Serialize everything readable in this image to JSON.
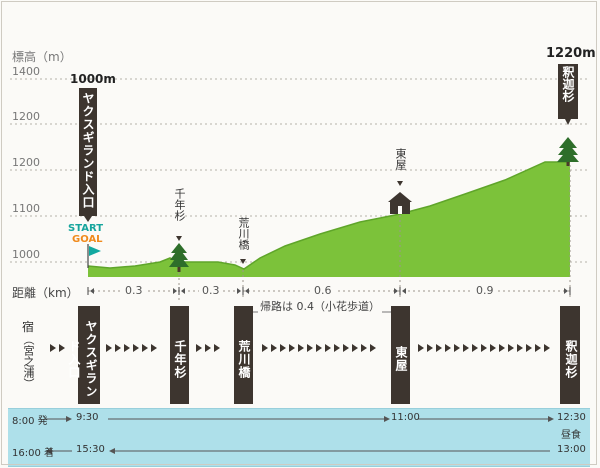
{
  "axis": {
    "title": "標高（m）",
    "ticks": [
      "1400",
      "1200",
      "1200",
      "1100",
      "1000"
    ]
  },
  "start_marker": {
    "elevation_label": "1000m",
    "name": "ヤクスギランド入口",
    "start_text": "START",
    "goal_text": "GOAL"
  },
  "end_marker": {
    "elevation_label": "1220m",
    "name": "釈迦杉"
  },
  "points": {
    "sennen": "千年杉",
    "arakawa": "荒川橋",
    "azumaya": "東屋"
  },
  "distance": {
    "label": "距離（km）",
    "seg1": "0.3",
    "seg2": "0.3",
    "seg3": "0.6",
    "seg4": "0.9",
    "note": "帰路は 0.4（小花歩道）"
  },
  "route_row": {
    "lodging": "宿",
    "lodging_sub": "（宮之浦）",
    "stops": [
      "ヤクスギランド入口",
      "千年杉",
      "荒川橋",
      "東屋",
      "釈迦杉"
    ]
  },
  "schedule": {
    "out_depart": "8:00 発",
    "out_t1": "9:30",
    "out_t2": "11:00",
    "out_t3": "12:30",
    "lunch": "昼食",
    "ret_arrive": "16:00 着",
    "ret_t1": "15:30",
    "ret_t3": "13:00"
  },
  "colors": {
    "terrain": "#7cc23a",
    "terrain_dark": "#5fa52a",
    "tree": "#2e6e2a",
    "marker_bar": "#3d352f",
    "flag": "#12a8a0",
    "start_text": "#16a59d",
    "goal_text": "#f08a1c",
    "band": "#aee0ea"
  }
}
